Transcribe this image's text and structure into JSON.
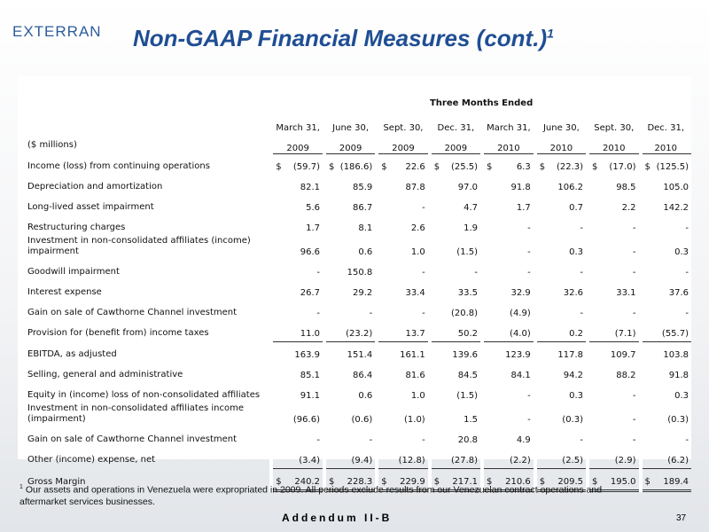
{
  "header": {
    "logo": "EXTERRAN",
    "title": "Non-GAAP Financial Measures (cont.)",
    "title_note": "1"
  },
  "table": {
    "group_header": "Three Months Ended",
    "units_label": "($ millions)",
    "columns": [
      [
        "March 31,",
        "2009"
      ],
      [
        "June 30,",
        "2009"
      ],
      [
        "Sept. 30,",
        "2009"
      ],
      [
        "Dec. 31,",
        "2009"
      ],
      [
        "March 31,",
        "2010"
      ],
      [
        "June 30,",
        "2010"
      ],
      [
        "Sept. 30,",
        "2010"
      ],
      [
        "Dec. 31,",
        "2010"
      ]
    ],
    "rows": [
      {
        "label": "Income (loss) from continuing operations",
        "prefix": "$",
        "cells": [
          "(59.7)",
          "(186.6)",
          "22.6",
          "(25.5)",
          "6.3",
          "(22.3)",
          "(17.0)",
          "(125.5)"
        ]
      },
      {
        "label": "Depreciation and amortization",
        "cells": [
          "82.1",
          "85.9",
          "87.8",
          "97.0",
          "91.8",
          "106.2",
          "98.5",
          "105.0"
        ]
      },
      {
        "label": "Long-lived asset impairment",
        "cells": [
          "5.6",
          "86.7",
          "-",
          "4.7",
          "1.7",
          "0.7",
          "2.2",
          "142.2"
        ]
      },
      {
        "label": "Restructuring charges",
        "cells": [
          "1.7",
          "8.1",
          "2.6",
          "1.9",
          "-",
          "-",
          "-",
          "-"
        ]
      },
      {
        "label": "Investment in non-consolidated affiliates (income) impairment",
        "cells": [
          "96.6",
          "0.6",
          "1.0",
          "(1.5)",
          "-",
          "0.3",
          "-",
          "0.3"
        ]
      },
      {
        "label": "Goodwill impairment",
        "cells": [
          "-",
          "150.8",
          "-",
          "-",
          "-",
          "-",
          "-",
          "-"
        ]
      },
      {
        "label": "Interest expense",
        "cells": [
          "26.7",
          "29.2",
          "33.4",
          "33.5",
          "32.9",
          "32.6",
          "33.1",
          "37.6"
        ]
      },
      {
        "label": "Gain on sale of Cawthorne Channel investment",
        "cells": [
          "-",
          "-",
          "-",
          "(20.8)",
          "(4.9)",
          "-",
          "-",
          "-"
        ]
      },
      {
        "label": "Provision for (benefit from) income taxes",
        "cells": [
          "11.0",
          "(23.2)",
          "13.7",
          "50.2",
          "(4.0)",
          "0.2",
          "(7.1)",
          "(55.7)"
        ]
      },
      {
        "label": "EBITDA, as adjusted",
        "cells": [
          "163.9",
          "151.4",
          "161.1",
          "139.6",
          "123.9",
          "117.8",
          "109.7",
          "103.8"
        ]
      },
      {
        "label": "Selling, general and administrative",
        "cells": [
          "85.1",
          "86.4",
          "81.6",
          "84.5",
          "84.1",
          "94.2",
          "88.2",
          "91.8"
        ]
      },
      {
        "label": "Equity in (income) loss of non-consolidated affiliates",
        "cells": [
          "91.1",
          "0.6",
          "1.0",
          "(1.5)",
          "-",
          "0.3",
          "-",
          "0.3"
        ]
      },
      {
        "label": "Investment in non-consolidated affiliates income (impairment)",
        "cells": [
          "(96.6)",
          "(0.6)",
          "(1.0)",
          "1.5",
          "-",
          "(0.3)",
          "-",
          "(0.3)"
        ]
      },
      {
        "label": "Gain on sale of Cawthorne Channel investment",
        "cells": [
          "-",
          "-",
          "-",
          "20.8",
          "4.9",
          "-",
          "-",
          "-"
        ]
      },
      {
        "label": "Other (income) expense, net",
        "cells": [
          "(3.4)",
          "(9.4)",
          "(12.8)",
          "(27.8)",
          "(2.2)",
          "(2.5)",
          "(2.9)",
          "(6.2)"
        ]
      },
      {
        "label": "Gross Margin",
        "prefix": "$",
        "cells": [
          "240.2",
          "228.3",
          "229.9",
          "217.1",
          "210.6",
          "209.5",
          "195.0",
          "189.4"
        ]
      }
    ]
  },
  "footnote": {
    "marker": "1",
    "text": "Our assets and operations in Venezuela were expropriated in 2009.  All periods exclude results from our Venezuelan contract operations and aftermarket services businesses."
  },
  "footer": {
    "label": "Addendum II-B",
    "page": "37"
  }
}
